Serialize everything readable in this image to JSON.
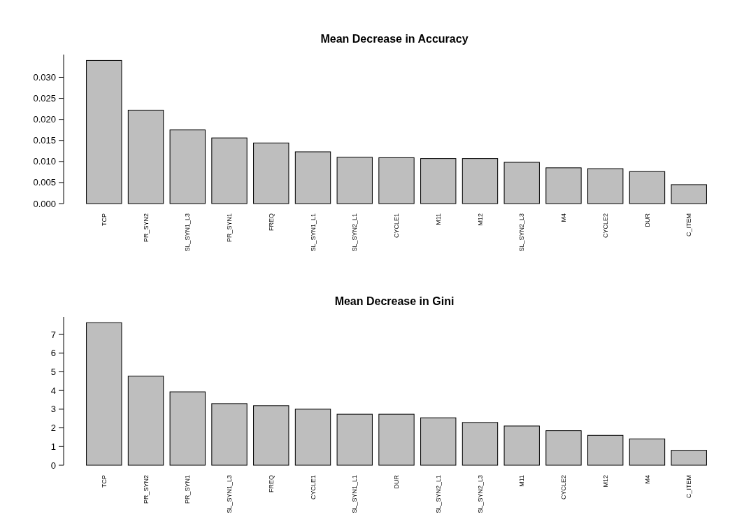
{
  "chart_data": [
    {
      "type": "bar",
      "title": "Mean Decrease in Accuracy",
      "categories": [
        "TCP",
        "PR_SYN2",
        "SL_SYN1_L3",
        "PR_SYN1",
        "FREQ",
        "SL_SYN1_L1",
        "SL_SYN2_L1",
        "CYCLE1",
        "M11",
        "M12",
        "SL_SYN2_L3",
        "M4",
        "CYCLE2",
        "DUR",
        "C_ITEM"
      ],
      "values": [
        0.034,
        0.0222,
        0.0175,
        0.0156,
        0.0144,
        0.0123,
        0.011,
        0.0109,
        0.0107,
        0.0107,
        0.0098,
        0.0085,
        0.0083,
        0.0076,
        0.0045
      ],
      "color": "#bebebe",
      "ylim": [
        0,
        0.0354
      ],
      "yticks": [
        {
          "value": 0,
          "label": "0.000"
        },
        {
          "value": 0.005,
          "label": "0.005"
        },
        {
          "value": 0.01,
          "label": "0.010"
        },
        {
          "value": 0.015,
          "label": "0.015"
        },
        {
          "value": 0.02,
          "label": "0.020"
        },
        {
          "value": 0.025,
          "label": "0.025"
        },
        {
          "value": 0.03,
          "label": "0.030"
        }
      ]
    },
    {
      "type": "bar",
      "title": "Mean Decrease in Gini",
      "categories": [
        "TCP",
        "PR_SYN2",
        "PR_SYN1",
        "SL_SYN1_L3",
        "FREQ",
        "CYCLE1",
        "SL_SYN1_L1",
        "DUR",
        "SL_SYN2_L1",
        "SL_SYN2_L3",
        "M11",
        "CYCLE2",
        "M12",
        "M4",
        "C_ITEM"
      ],
      "values": [
        7.63,
        4.77,
        3.93,
        3.3,
        3.19,
        3.0,
        2.73,
        2.73,
        2.54,
        2.29,
        2.1,
        1.85,
        1.6,
        1.41,
        0.8
      ],
      "color": "#bebebe",
      "ylim": [
        0,
        7.94
      ],
      "yticks": [
        0,
        1,
        2,
        3,
        4,
        5,
        6,
        7
      ]
    }
  ]
}
